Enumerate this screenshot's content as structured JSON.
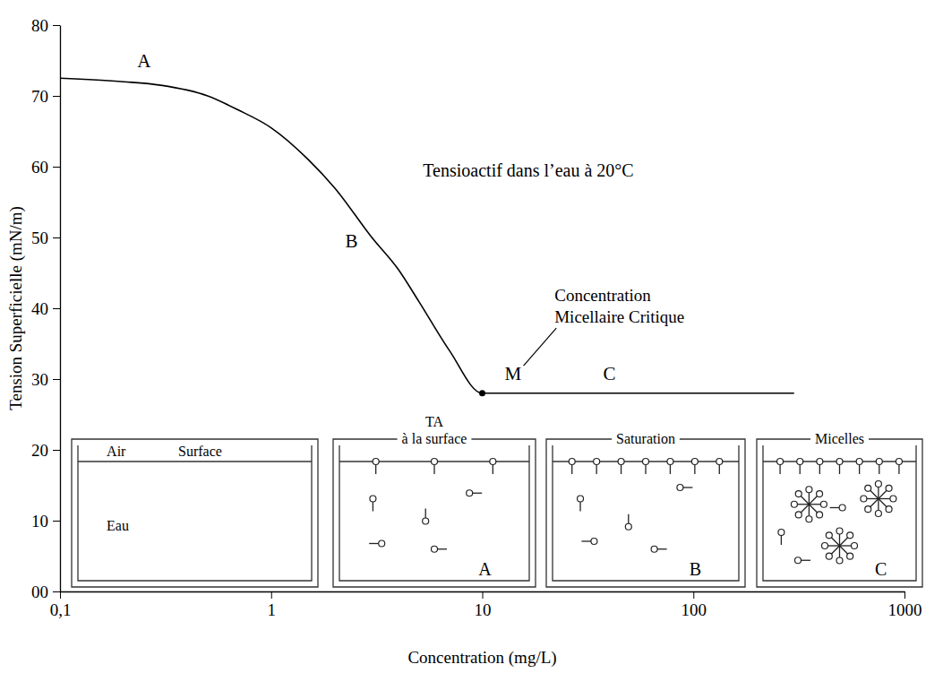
{
  "chart_data": {
    "type": "line",
    "title": "Tensioactif dans l’eau à 20°C",
    "x_label": "Concentration (mg/L)",
    "y_label": "Tension Superficielle (mN/m)",
    "log": "x",
    "xlim": [
      0.1,
      1000
    ],
    "xticks": [
      {
        "value": 0.1,
        "label": "0,1"
      },
      1,
      10,
      100,
      1000
    ],
    "ylim": [
      0,
      80
    ],
    "yticks": [
      {
        "value": 0,
        "label": "00"
      },
      10,
      20,
      30,
      40,
      50,
      60,
      70,
      80
    ],
    "x": [
      0.1,
      0.2,
      0.3,
      0.5,
      0.7,
      1,
      1.5,
      2,
      3,
      4,
      5,
      7,
      10,
      300
    ],
    "values": [
      72.5,
      72,
      71.5,
      70,
      68,
      65.5,
      61,
      57,
      50,
      45.5,
      41,
      34,
      28,
      28
    ],
    "color": "#000000",
    "annotations": [
      {
        "text": "A",
        "x": 0.25,
        "y": 75
      },
      {
        "text": "B",
        "x": 2.4,
        "y": 49.6
      },
      {
        "text": "C",
        "x": 40,
        "y": 30.8
      },
      {
        "text": "M",
        "x": 14,
        "y": 30.8
      }
    ],
    "cmc": {
      "x": 10,
      "y": 28,
      "text": [
        "Concentration",
        "Micellaire Critique"
      ],
      "text_x": 22,
      "text_y": 41
    },
    "insets": [
      {
        "labels": [
          "Air",
          "Surface",
          "Eau"
        ]
      },
      {
        "title": [
          "TA",
          "à la surface"
        ],
        "letter": "A"
      },
      {
        "title": [
          "Saturation"
        ],
        "letter": "B"
      },
      {
        "title": [
          "Micelles"
        ],
        "letter": "C"
      }
    ]
  }
}
